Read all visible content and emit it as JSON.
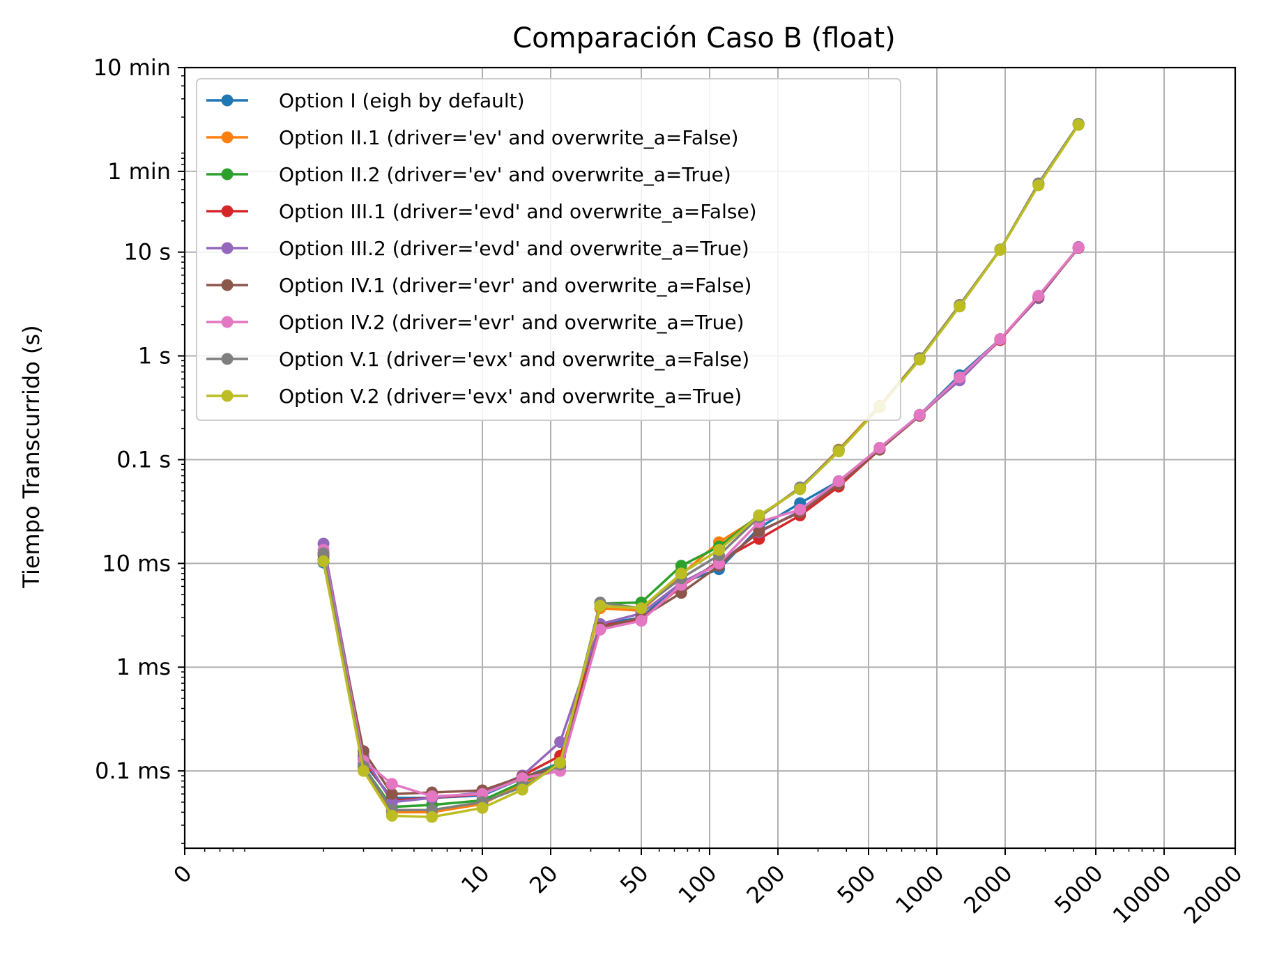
{
  "chart_data": {
    "type": "line",
    "title": "Comparación Caso B (float)",
    "xlabel": "",
    "ylabel": "Tiempo Transcurrido (s)",
    "x_scale": "log",
    "y_scale": "log",
    "ylim": [
      1.8e-05,
      600
    ],
    "grid": true,
    "legend_position": "upper-left",
    "y_ticks": [
      {
        "value": 0.0001,
        "label": "0.1 ms"
      },
      {
        "value": 0.001,
        "label": "1 ms"
      },
      {
        "value": 0.01,
        "label": "10 ms"
      },
      {
        "value": 0.1,
        "label": "0.1 s"
      },
      {
        "value": 1,
        "label": "1 s"
      },
      {
        "value": 10,
        "label": "10 s"
      },
      {
        "value": 60,
        "label": "1 min"
      },
      {
        "value": 600,
        "label": "10 min"
      }
    ],
    "x_tick_labels": [
      "0",
      "10",
      "20",
      "50",
      "100",
      "200",
      "500",
      "1000",
      "2000",
      "5000",
      "10000",
      "20000"
    ],
    "series": [
      {
        "name": "Option I (eigh by default)",
        "color": "#1f77b4",
        "x": [
          2,
          3,
          4,
          6,
          10,
          15,
          22,
          33,
          50,
          75,
          110,
          165,
          250,
          370,
          560,
          840,
          1260,
          1900,
          2800,
          4200
        ],
        "y": [
          0.0102,
          0.00012,
          5.5e-05,
          5.5e-05,
          5.8e-05,
          8.5e-05,
          0.00012,
          0.0026,
          0.003,
          0.0065,
          0.0088,
          0.022,
          0.038,
          0.062,
          0.13,
          0.27,
          0.65,
          1.45,
          3.7,
          11
        ]
      },
      {
        "name": "Option II.1 (driver='ev' and overwrite_a=False)",
        "color": "#ff7f0e",
        "x": [
          2,
          3,
          4,
          6,
          10,
          15,
          22,
          33,
          50,
          75,
          110,
          165,
          250,
          370,
          560,
          840,
          1260,
          1900,
          2800,
          4200
        ],
        "y": [
          0.0105,
          0.000105,
          4e-05,
          4e-05,
          4.8e-05,
          7.5e-05,
          0.00012,
          0.0037,
          0.0035,
          0.0078,
          0.016,
          0.028,
          0.053,
          0.125,
          0.33,
          0.95,
          3.1,
          10.6,
          45,
          170
        ]
      },
      {
        "name": "Option II.2 (driver='ev' and overwrite_a=True)",
        "color": "#2ca02c",
        "x": [
          2,
          3,
          4,
          6,
          10,
          15,
          22,
          33,
          50,
          75,
          110,
          165,
          250,
          370,
          560,
          840,
          1260,
          1900,
          2800,
          4200
        ],
        "y": [
          0.011,
          0.00011,
          4.5e-05,
          4.7e-05,
          5.2e-05,
          7.8e-05,
          0.00012,
          0.0041,
          0.0042,
          0.0095,
          0.0145,
          0.029,
          0.052,
          0.123,
          0.32,
          0.95,
          3.0,
          10.6,
          45,
          172
        ]
      },
      {
        "name": "Option III.1 (driver='evd' and overwrite_a=False)",
        "color": "#d62728",
        "x": [
          2,
          3,
          4,
          6,
          10,
          15,
          22,
          33,
          50,
          75,
          110,
          165,
          250,
          370,
          560,
          840,
          1260,
          1900,
          2800,
          4200
        ],
        "y": [
          0.0125,
          0.00013,
          5.2e-05,
          5.5e-05,
          6e-05,
          9e-05,
          0.00014,
          0.0025,
          0.0029,
          0.006,
          0.0105,
          0.0172,
          0.029,
          0.055,
          0.125,
          0.265,
          0.6,
          1.42,
          3.7,
          11
        ]
      },
      {
        "name": "Option III.2 (driver='evd' and overwrite_a=True)",
        "color": "#9467bd",
        "x": [
          2,
          3,
          4,
          6,
          10,
          15,
          22,
          33,
          50,
          75,
          110,
          165,
          250,
          370,
          560,
          840,
          1260,
          1900,
          2800,
          4200
        ],
        "y": [
          0.0155,
          0.00014,
          5e-05,
          5.5e-05,
          6.2e-05,
          9e-05,
          0.00019,
          0.0026,
          0.0033,
          0.0065,
          0.01,
          0.02,
          0.032,
          0.06,
          0.128,
          0.27,
          0.58,
          1.45,
          3.6,
          11.2
        ]
      },
      {
        "name": "Option IV.1 (driver='evr' and overwrite_a=False)",
        "color": "#8c564b",
        "x": [
          2,
          3,
          4,
          6,
          10,
          15,
          22,
          33,
          50,
          75,
          110,
          165,
          250,
          370,
          560,
          840,
          1260,
          1900,
          2800,
          4200
        ],
        "y": [
          0.012,
          0.000155,
          6e-05,
          6.2e-05,
          6.5e-05,
          8.8e-05,
          0.00011,
          0.0024,
          0.003,
          0.0052,
          0.0095,
          0.0205,
          0.031,
          0.058,
          0.125,
          0.265,
          0.62,
          1.45,
          3.7,
          11
        ]
      },
      {
        "name": "Option IV.2 (driver='evr' and overwrite_a=True)",
        "color": "#e377c2",
        "x": [
          2,
          3,
          4,
          6,
          10,
          15,
          22,
          33,
          50,
          75,
          110,
          165,
          250,
          370,
          560,
          840,
          1260,
          1900,
          2800,
          4200
        ],
        "y": [
          0.0135,
          0.000125,
          7.5e-05,
          5.7e-05,
          6e-05,
          8.5e-05,
          0.0001,
          0.0023,
          0.0028,
          0.0062,
          0.01,
          0.025,
          0.033,
          0.062,
          0.13,
          0.27,
          0.62,
          1.45,
          3.8,
          11.1
        ]
      },
      {
        "name": "Option V.1 (driver='evx' and overwrite_a=False)",
        "color": "#7f7f7f",
        "x": [
          2,
          3,
          4,
          6,
          10,
          15,
          22,
          33,
          50,
          75,
          110,
          165,
          250,
          370,
          560,
          840,
          1260,
          1900,
          2800,
          4200
        ],
        "y": [
          0.0125,
          0.00011,
          4.2e-05,
          4.2e-05,
          5e-05,
          7e-05,
          0.000115,
          0.0042,
          0.0037,
          0.0072,
          0.012,
          0.028,
          0.054,
          0.122,
          0.32,
          0.95,
          3.1,
          10.6,
          46,
          172
        ]
      },
      {
        "name": "Option V.2 (driver='evx' and overwrite_a=True)",
        "color": "#bcbd22",
        "x": [
          2,
          3,
          4,
          6,
          10,
          15,
          22,
          33,
          50,
          75,
          110,
          165,
          250,
          370,
          560,
          840,
          1260,
          1900,
          2800,
          4200
        ],
        "y": [
          0.0105,
          0.0001,
          3.7e-05,
          3.6e-05,
          4.4e-05,
          6.6e-05,
          0.00012,
          0.0039,
          0.0037,
          0.008,
          0.0135,
          0.029,
          0.052,
          0.12,
          0.32,
          0.92,
          3.0,
          10.5,
          44,
          168
        ]
      }
    ]
  }
}
